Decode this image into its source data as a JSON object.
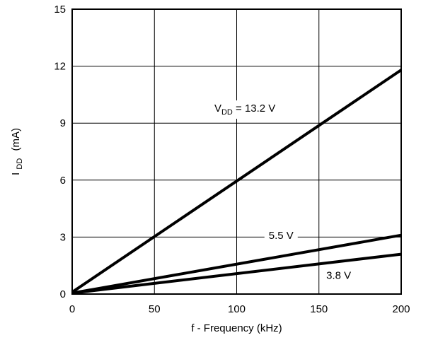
{
  "chart_data": {
    "type": "line",
    "title": "",
    "xlabel": "f -  Frequency (kHz)",
    "ylabel": {
      "main": "I",
      "sub": "DD",
      "unit": "(mA)"
    },
    "xlim": [
      0,
      200
    ],
    "ylim": [
      0,
      15
    ],
    "grid": true,
    "x_ticks": [
      0,
      50,
      100,
      150,
      200
    ],
    "y_ticks": [
      0,
      3,
      6,
      9,
      12,
      15
    ],
    "x_tick_labels": [
      "0",
      "50",
      "100",
      "150",
      "200"
    ],
    "y_tick_labels": [
      "0",
      "3",
      "6",
      "9",
      "12",
      "15"
    ],
    "series": [
      {
        "name": "13.2 V",
        "x": [
          0,
          200
        ],
        "y": [
          0.1,
          11.8
        ]
      },
      {
        "name": "5.5 V",
        "x": [
          0,
          200
        ],
        "y": [
          0.05,
          3.1
        ]
      },
      {
        "name": "3.8 V",
        "x": [
          0,
          200
        ],
        "y": [
          0.05,
          2.1
        ]
      }
    ],
    "annotations": [
      {
        "series": "13.2 V",
        "prefix": "V",
        "sub": "DD",
        "text": " = 13.2 V",
        "x": 105,
        "y": 9.6
      },
      {
        "series": "5.5 V",
        "text": "5.5 V",
        "x": 127,
        "y": 2.9
      },
      {
        "series": "3.8 V",
        "text": "3.8 V",
        "x": 162,
        "y": 0.8
      }
    ],
    "line_color": "#000000",
    "grid_color": "#000000"
  }
}
